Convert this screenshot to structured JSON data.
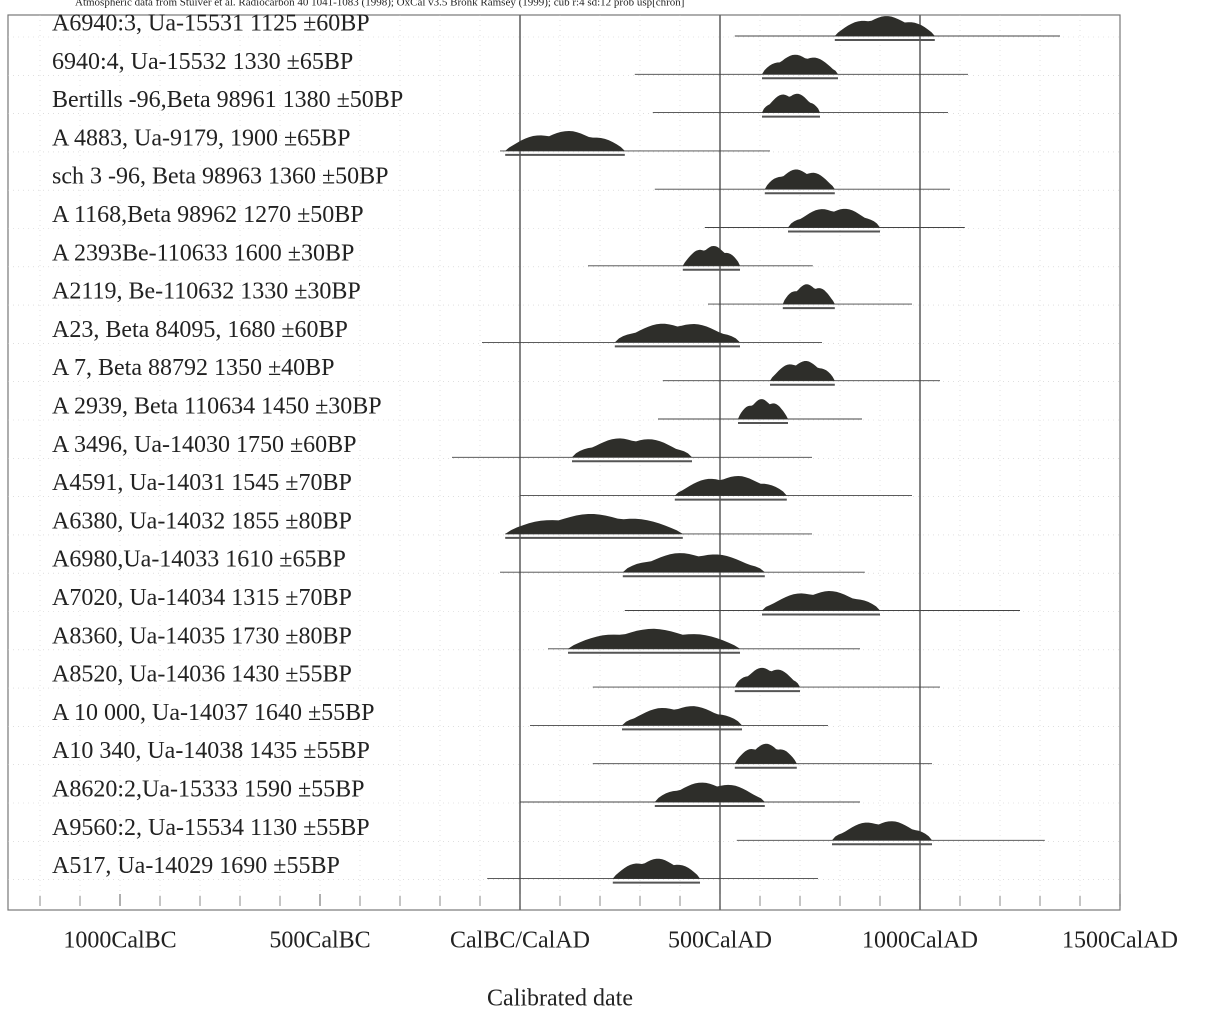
{
  "chart_data": {
    "type": "calibration",
    "note": "Atmospheric data from Stuiver et al. Radiocarbon 40 1041-1083 (1998); OxCal v3.5 Bronk Ramsey (1999); cub r:4 sd:12 prob usp[chron]",
    "xlabel": "Calibrated date",
    "xlim": [
      -1280,
      1500
    ],
    "xticks": [
      {
        "value": -1000,
        "label": "1000CalBC"
      },
      {
        "value": -500,
        "label": "500CalBC"
      },
      {
        "value": 0,
        "label": "CalBC/CalAD"
      },
      {
        "value": 500,
        "label": "500CalAD"
      },
      {
        "value": 1000,
        "label": "1000CalAD"
      },
      {
        "value": 1500,
        "label": "1500CalAD"
      }
    ],
    "minor_xticks": [
      -1200,
      -1100,
      -1000,
      -900,
      -800,
      -700,
      -600,
      -500,
      -400,
      -300,
      -200,
      -100,
      0,
      100,
      200,
      300,
      400,
      500,
      600,
      700,
      800,
      900,
      1000,
      1100,
      1200,
      1300,
      1400
    ],
    "reference_lines": [
      0,
      500,
      1000
    ],
    "color": "#2e2e2a",
    "samples": [
      {
        "label": "A6940:3, Ua-15531  1125 ±60BP",
        "range": [
          787,
          1037
        ],
        "whisker": [
          537,
          1350
        ]
      },
      {
        "label": "6940:4, Ua-15532  1330 ±65BP",
        "range": [
          605,
          795
        ],
        "whisker": [
          287,
          1120
        ]
      },
      {
        "label": "Bertills -96,Beta 98961  1380 ±50BP",
        "range": [
          605,
          750
        ],
        "whisker": [
          332,
          1070
        ]
      },
      {
        "label": "A 4883, Ua-9179,  1900 ±65BP",
        "range": [
          -37,
          262
        ],
        "whisker": [
          -50,
          625
        ]
      },
      {
        "label": "sch 3 -96, Beta 98963  1360 ±50BP",
        "range": [
          612,
          787
        ],
        "whisker": [
          337,
          1075
        ]
      },
      {
        "label": "A 1168,Beta 98962  1270 ±50BP",
        "range": [
          670,
          900
        ],
        "whisker": [
          462,
          1112
        ]
      },
      {
        "label": "A 2393Be-110633  1600 ±30BP",
        "range": [
          407,
          550
        ],
        "whisker": [
          170,
          732
        ]
      },
      {
        "label": "A2119, Be-110632  1330 ±30BP",
        "range": [
          657,
          787
        ],
        "whisker": [
          470,
          980
        ]
      },
      {
        "label": "A23, Beta 84095,  1680 ±60BP",
        "range": [
          237,
          550
        ],
        "whisker": [
          -95,
          755
        ]
      },
      {
        "label": "A 7, Beta 88792  1350 ±40BP",
        "range": [
          625,
          787
        ],
        "whisker": [
          357,
          1050
        ]
      },
      {
        "label": "A 2939, Beta 110634  1450 ±30BP",
        "range": [
          545,
          670
        ],
        "whisker": [
          345,
          855
        ]
      },
      {
        "label": "A 3496, Ua-14030  1750 ±60BP",
        "range": [
          130,
          430
        ],
        "whisker": [
          -170,
          730
        ]
      },
      {
        "label": "A4591, Ua-14031  1545 ±70BP",
        "range": [
          387,
          667
        ],
        "whisker": [
          0,
          980
        ]
      },
      {
        "label": "A6380, Ua-14032  1855 ±80BP",
        "range": [
          -37,
          407
        ],
        "whisker": [
          -37,
          730
        ]
      },
      {
        "label": "A6980,Ua-14033  1610 ±65BP",
        "range": [
          257,
          612
        ],
        "whisker": [
          -50,
          862
        ]
      },
      {
        "label": "A7020, Ua-14034  1315 ±70BP",
        "range": [
          605,
          900
        ],
        "whisker": [
          262,
          1250
        ]
      },
      {
        "label": "A8360, Ua-14035  1730 ±80BP",
        "range": [
          120,
          550
        ],
        "whisker": [
          70,
          850
        ]
      },
      {
        "label": "A8520, Ua-14036  1430 ±55BP",
        "range": [
          537,
          700
        ],
        "whisker": [
          182,
          1050
        ]
      },
      {
        "label": "A 10 000, Ua-14037  1640 ±55BP",
        "range": [
          255,
          555
        ],
        "whisker": [
          25,
          770
        ]
      },
      {
        "label": "A10 340, Ua-14038  1435 ±55BP",
        "range": [
          537,
          692
        ],
        "whisker": [
          182,
          1030
        ]
      },
      {
        "label": "A8620:2,Ua-15333  1590 ±55BP",
        "range": [
          337,
          612
        ],
        "whisker": [
          0,
          850
        ]
      },
      {
        "label": "A9560:2, Ua-15534  1130 ±55BP",
        "range": [
          780,
          1030
        ],
        "whisker": [
          542,
          1312
        ]
      },
      {
        "label": "A517, Ua-14029  1690 ±55BP",
        "range": [
          232,
          450
        ],
        "whisker": [
          -82,
          745
        ]
      }
    ]
  }
}
